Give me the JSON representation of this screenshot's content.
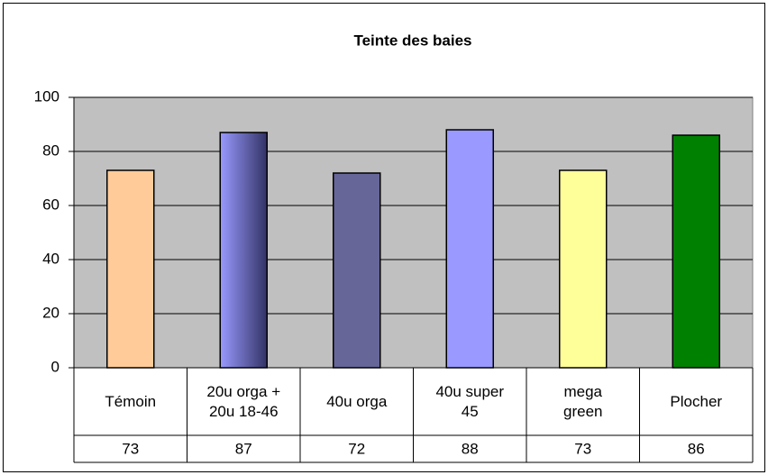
{
  "chart_data": {
    "type": "bar",
    "title": "Teinte des baies",
    "categories": [
      "Témoin",
      "20u orga + 20u 18-46",
      "40u orga",
      "40u super 45",
      "mega green",
      "Plocher"
    ],
    "values": [
      73,
      87,
      72,
      88,
      73,
      86
    ],
    "colors": [
      "#ffcc99",
      "#9999ff",
      "#666699",
      "#9999ff",
      "#ffff99",
      "#008000"
    ],
    "ylim": [
      0,
      100
    ],
    "yticks": [
      0,
      20,
      40,
      60,
      80,
      100
    ],
    "grid": true,
    "data_table": true
  }
}
